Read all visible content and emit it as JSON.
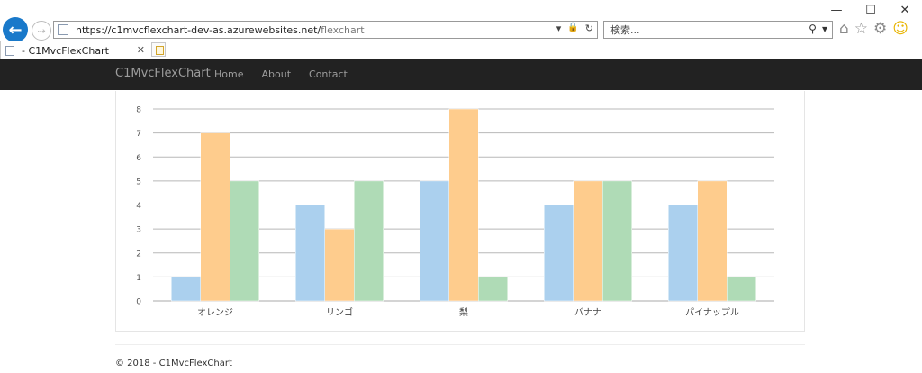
{
  "window": {
    "minimize_glyph": "—",
    "maximize_glyph": "☐",
    "close_glyph": "✕"
  },
  "browser": {
    "back_glyph": "←",
    "forward_glyph": "⇢",
    "url_host": "https://c1mvcflexchart-dev-as.azurewebsites.net/",
    "url_path": "flexchart",
    "url_tools": {
      "dropdown": "▾",
      "lock": "🔒",
      "refresh": "↻"
    },
    "search_placeholder": "検索...",
    "search_tools": {
      "search": "⚲",
      "dropdown": "▾"
    },
    "right_icons": {
      "home": "⌂",
      "favorites": "☆",
      "settings": "⚙",
      "feedback": "☺"
    },
    "tab": {
      "title": "- C1MvcFlexChart",
      "close": "✕"
    }
  },
  "navbar": {
    "brand": "C1MvcFlexChart",
    "links": [
      "Home",
      "About",
      "Contact"
    ]
  },
  "chart_data": {
    "type": "bar",
    "categories": [
      "オレンジ",
      "リンゴ",
      "梨",
      "バナナ",
      "パイナップル"
    ],
    "series": [
      {
        "values": [
          1,
          4,
          5,
          4,
          4
        ],
        "color": "#abd0ee"
      },
      {
        "values": [
          7,
          3,
          8,
          5,
          5
        ],
        "color": "#fecc8d"
      },
      {
        "values": [
          5,
          5,
          1,
          5,
          1
        ],
        "color": "#afdbb6"
      }
    ],
    "ylim": [
      0,
      8
    ],
    "yticks": [
      "0",
      "1",
      "2",
      "3",
      "4",
      "5",
      "6",
      "7",
      "8"
    ],
    "grid": true,
    "legend": "none"
  },
  "footer": {
    "text": "© 2018 - C1MvcFlexChart"
  }
}
